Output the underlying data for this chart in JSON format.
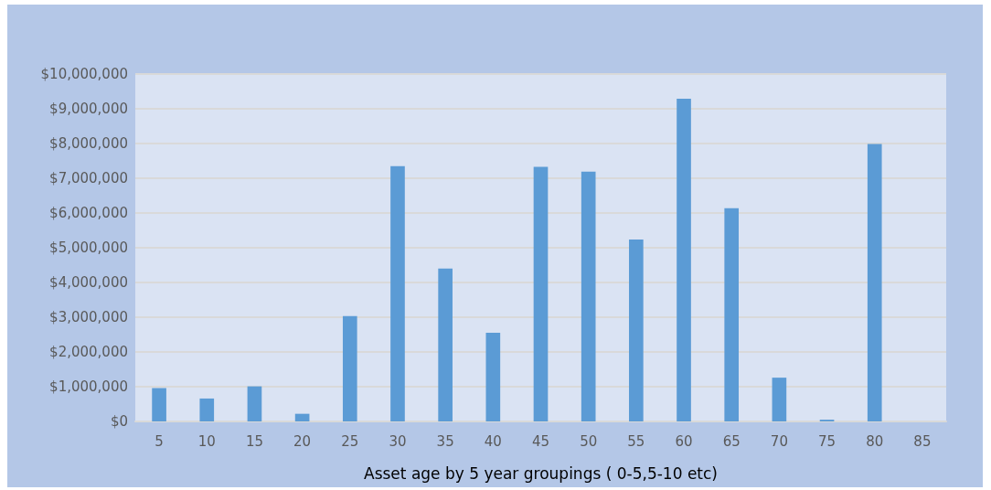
{
  "chart_data": {
    "type": "bar",
    "xlabel": "Asset age by 5 year groupings ( 0-5,5-10 etc)",
    "categories": [
      "5",
      "10",
      "15",
      "20",
      "25",
      "30",
      "35",
      "40",
      "45",
      "50",
      "55",
      "60",
      "65",
      "70",
      "75",
      "80",
      "85"
    ],
    "values": [
      960000,
      660000,
      1010000,
      220000,
      3030000,
      7350000,
      4400000,
      2550000,
      7330000,
      7190000,
      5240000,
      9290000,
      6140000,
      1260000,
      50000,
      7990000,
      0
    ],
    "color": "#5b9bd5",
    "ylim": [
      0,
      10000000
    ],
    "yticks": [
      {
        "value": 0,
        "label": "$0"
      },
      {
        "value": 1000000,
        "label": "$1,000,000"
      },
      {
        "value": 2000000,
        "label": "$2,000,000"
      },
      {
        "value": 3000000,
        "label": "$3,000,000"
      },
      {
        "value": 4000000,
        "label": "$4,000,000"
      },
      {
        "value": 5000000,
        "label": "$5,000,000"
      },
      {
        "value": 6000000,
        "label": "$6,000,000"
      },
      {
        "value": 7000000,
        "label": "$7,000,000"
      },
      {
        "value": 8000000,
        "label": "$8,000,000"
      },
      {
        "value": 9000000,
        "label": "$9,000,000"
      },
      {
        "value": 10000000,
        "label": "$10,000,000"
      }
    ],
    "grid": true
  }
}
